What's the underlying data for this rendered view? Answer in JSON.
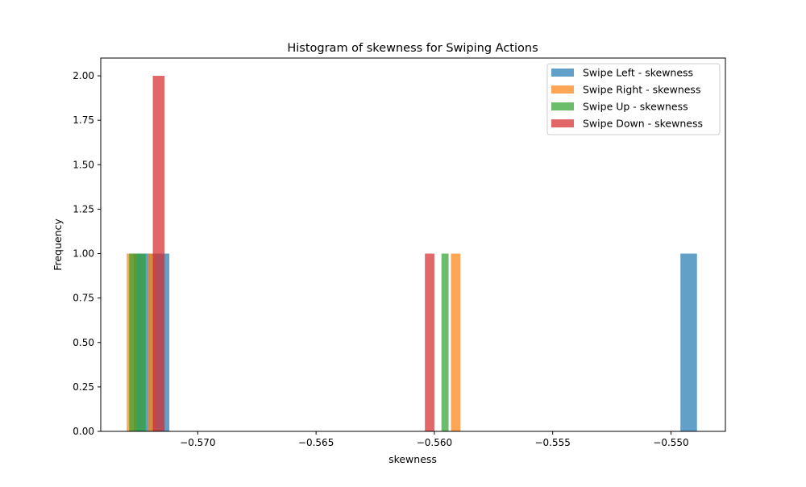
{
  "chart_data": {
    "type": "bar",
    "title": "Histogram of skewness for Swiping Actions",
    "xlabel": "skewness",
    "ylabel": "Frequency",
    "xlim": [
      -0.5741,
      -0.5477
    ],
    "ylim": [
      0,
      2.1
    ],
    "x_ticks": [
      -0.57,
      -0.565,
      -0.56,
      -0.555,
      -0.55
    ],
    "x_tick_labels": [
      "−0.570",
      "−0.565",
      "−0.560",
      "−0.555",
      "−0.550"
    ],
    "y_ticks": [
      0,
      0.25,
      0.5,
      0.75,
      1.0,
      1.25,
      1.5,
      1.75,
      2.0
    ],
    "y_tick_labels": [
      "0.00",
      "0.25",
      "0.50",
      "0.75",
      "1.00",
      "1.25",
      "1.50",
      "1.75",
      "2.00"
    ],
    "grid": false,
    "legend_position": "top-right",
    "series": [
      {
        "name": "Swipe Left - skewness",
        "color": "#1f77b4",
        "bars": [
          {
            "x0": -0.5727,
            "x1": -0.572,
            "count": 1
          },
          {
            "x0": -0.572,
            "x1": -0.5712,
            "count": 1
          },
          {
            "x0": -0.5496,
            "x1": -0.5489,
            "count": 1
          }
        ]
      },
      {
        "name": "Swipe Right - skewness",
        "color": "#ff7f0e",
        "bars": [
          {
            "x0": -0.573,
            "x1": -0.5726,
            "count": 1
          },
          {
            "x0": -0.5721,
            "x1": -0.5718,
            "count": 1
          },
          {
            "x0": -0.5593,
            "x1": -0.5589,
            "count": 1
          }
        ]
      },
      {
        "name": "Swipe Up - skewness",
        "color": "#2ca02c",
        "bars": [
          {
            "x0": -0.5729,
            "x1": -0.5726,
            "count": 1
          },
          {
            "x0": -0.5726,
            "x1": -0.5722,
            "count": 1
          },
          {
            "x0": -0.5597,
            "x1": -0.5594,
            "count": 1
          }
        ]
      },
      {
        "name": "Swipe Down - skewness",
        "color": "#d62728",
        "bars": [
          {
            "x0": -0.5719,
            "x1": -0.5714,
            "count": 2
          },
          {
            "x0": -0.5604,
            "x1": -0.56,
            "count": 1
          }
        ]
      }
    ]
  }
}
